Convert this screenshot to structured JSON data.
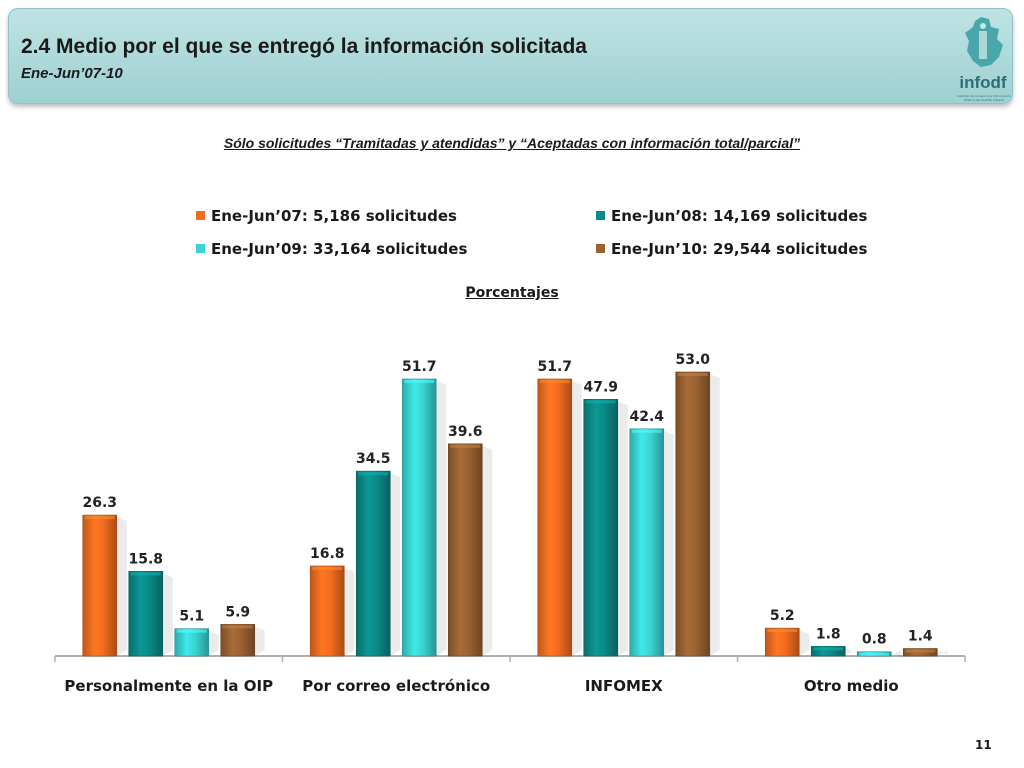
{
  "header": {
    "title": "2.4 Medio por el que se entregó la información solicitada",
    "subtitle": "Ene-Jun’07-10",
    "logo_text": "infodf",
    "logo_caption": "Instituto de Acceso a la Información Pública del Distrito Federal"
  },
  "note": "Sólo solicitudes “Tramitadas y atendidas” y “Aceptadas con información total/parcial”",
  "page_number": "11",
  "colors": {
    "header_bg": "#a9d8da",
    "orange": "#f26c1f",
    "teal": "#0b8a87",
    "cyan": "#3ad4d4",
    "brown": "#9a6232"
  },
  "chart_data": {
    "type": "bar",
    "unit_label": "Porcentajes",
    "categories": [
      "Personalmente en la OIP",
      "Por correo electrónico",
      "INFOMEX",
      "Otro medio"
    ],
    "series": [
      {
        "name": "Ene-Jun’07: 5,186 solicitudes",
        "color": "#f26c1f",
        "values": [
          26.3,
          16.8,
          51.7,
          5.2
        ]
      },
      {
        "name": "Ene-Jun’08: 14,169 solicitudes",
        "color": "#0b8a87",
        "values": [
          15.8,
          34.5,
          47.9,
          1.8
        ]
      },
      {
        "name": "Ene-Jun’09: 33,164 solicitudes",
        "color": "#3ad4d4",
        "values": [
          5.1,
          51.7,
          42.4,
          0.8
        ]
      },
      {
        "name": "Ene-Jun’10: 29,544 solicitudes",
        "color": "#9a6232",
        "values": [
          5.9,
          39.6,
          53.0,
          1.4
        ]
      }
    ],
    "ylim": [
      0,
      55
    ],
    "grid": false,
    "legend_position": "top"
  }
}
